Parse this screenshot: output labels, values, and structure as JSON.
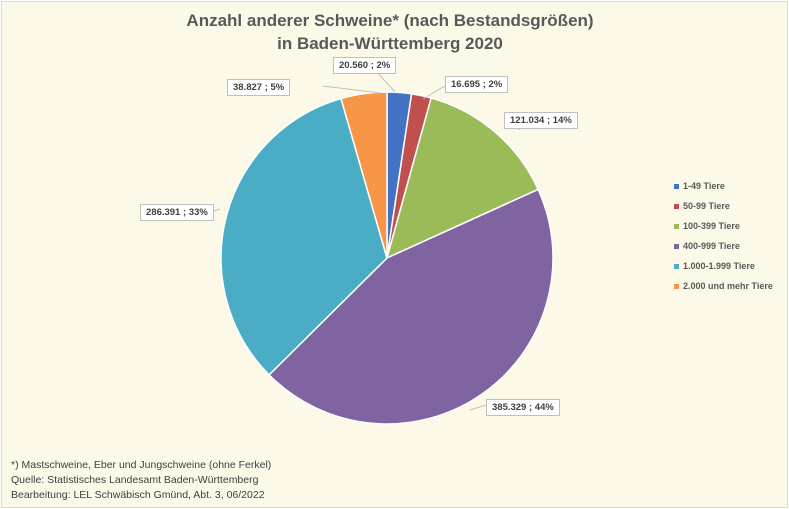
{
  "chart_data": {
    "type": "pie",
    "title": "Anzahl anderer Schweine* (nach Bestandsgrößen) in Baden-Württemberg 2020",
    "title_lines": [
      "Anzahl anderer Schweine* (nach Bestandsgrößen)",
      "in Baden-Württemberg 2020"
    ],
    "categories": [
      "1-49 Tiere",
      "50-99 Tiere",
      "100-399 Tiere",
      "400-999 Tiere",
      "1.000-1.999 Tiere",
      "2.000 und mehr Tiere"
    ],
    "values": [
      20560,
      16695,
      121034,
      385329,
      286391,
      38827
    ],
    "percentages": [
      2,
      2,
      14,
      44,
      33,
      5
    ],
    "colors": [
      "#4472c4",
      "#c0504d",
      "#9bbb59",
      "#8064a2",
      "#4bacc6",
      "#f79646"
    ],
    "data_labels": [
      "20.560 ; 2%",
      "16.695 ; 2%",
      "121.034 ; 14%",
      "385.329 ; 44%",
      "286.391 ; 33%",
      "38.827 ; 5%"
    ],
    "legend_position": "right"
  },
  "footnotes": [
    "*) Mastschweine, Eber und Jungschweine (ohne Ferkel)",
    "Quelle: Statistisches Landesamt Baden-Württemberg",
    "Bearbeitung: LEL Schwäbisch Gmünd, Abt. 3, 06/2022"
  ]
}
